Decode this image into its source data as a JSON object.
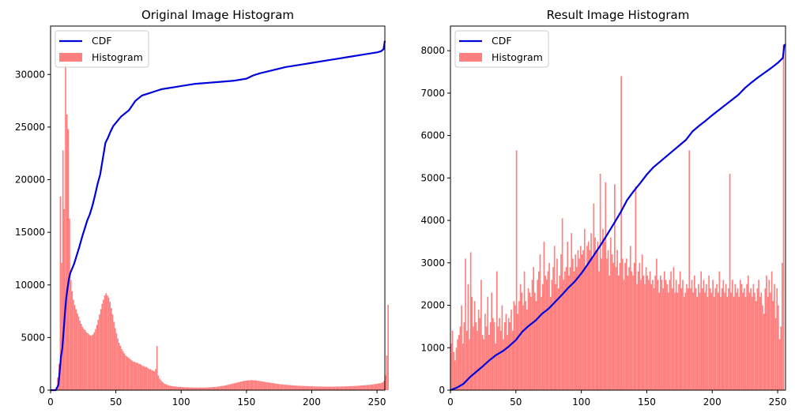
{
  "colors": {
    "cdf": "#0000dd",
    "histogram": "#ff7f7f",
    "axes": "#000000",
    "legend_border": "#cccccc"
  },
  "chart_data": [
    {
      "type": "bar",
      "title": "Original Image Histogram",
      "xlabel": "",
      "ylabel": "",
      "xlim": [
        0,
        256
      ],
      "ylim": [
        0,
        34600
      ],
      "xticks": [
        0,
        50,
        100,
        150,
        200,
        250
      ],
      "yticks": [
        0,
        5000,
        10000,
        15000,
        20000,
        25000,
        30000
      ],
      "grid": false,
      "legend_position": "top-left",
      "legend": [
        "CDF",
        "Histogram"
      ],
      "series": [
        {
          "name": "Histogram",
          "kind": "bar",
          "color": "#ff7f7f",
          "bin_start": 0,
          "bin_width": 1,
          "values": [
            0,
            0,
            0,
            100,
            300,
            1200,
            2500,
            18400,
            12100,
            22800,
            17200,
            31000,
            26200,
            24800,
            16300,
            10500,
            9400,
            8600,
            8100,
            7700,
            7300,
            7000,
            6600,
            6300,
            6000,
            5800,
            5700,
            5500,
            5400,
            5300,
            5200,
            5200,
            5300,
            5500,
            5800,
            6200,
            6700,
            7200,
            7700,
            8200,
            8600,
            9000,
            9200,
            9000,
            8800,
            8400,
            7800,
            7200,
            6500,
            5900,
            5400,
            4900,
            4500,
            4200,
            3900,
            3700,
            3500,
            3300,
            3200,
            3100,
            3000,
            2900,
            2800,
            2700,
            2700,
            2600,
            2600,
            2500,
            2500,
            2400,
            2300,
            2300,
            2200,
            2200,
            2100,
            2000,
            2000,
            1900,
            1850,
            1800,
            2000,
            4200,
            1400,
            1100,
            950,
            800,
            700,
            600,
            550,
            500,
            450,
            420,
            400,
            380,
            360,
            350,
            330,
            320,
            310,
            300,
            290,
            285,
            280,
            275,
            270,
            265,
            260,
            255,
            250,
            250,
            245,
            245,
            240,
            240,
            240,
            240,
            240,
            245,
            250,
            255,
            260,
            265,
            270,
            280,
            290,
            300,
            310,
            320,
            340,
            360,
            380,
            400,
            420,
            440,
            470,
            500,
            530,
            560,
            590,
            620,
            650,
            680,
            710,
            740,
            770,
            800,
            830,
            860,
            880,
            900,
            920,
            930,
            940,
            950,
            950,
            945,
            935,
            920,
            900,
            880,
            860,
            840,
            820,
            800,
            780,
            760,
            740,
            720,
            700,
            680,
            660,
            640,
            620,
            600,
            585,
            570,
            555,
            540,
            530,
            520,
            510,
            500,
            490,
            480,
            470,
            460,
            450,
            440,
            430,
            420,
            415,
            410,
            405,
            400,
            395,
            390,
            385,
            380,
            375,
            370,
            365,
            360,
            355,
            350,
            350,
            345,
            345,
            340,
            340,
            340,
            335,
            335,
            335,
            335,
            335,
            335,
            335,
            340,
            340,
            340,
            345,
            345,
            350,
            350,
            355,
            360,
            365,
            370,
            375,
            380,
            385,
            390,
            395,
            400,
            410,
            420,
            430,
            440,
            450,
            460,
            470,
            480,
            490,
            500,
            510,
            520,
            540,
            560,
            580,
            600,
            620,
            640,
            660,
            700,
            750,
            900,
            1400,
            3300,
            8100
          ]
        },
        {
          "name": "CDF",
          "kind": "line",
          "color": "#0000dd",
          "x": [
            0,
            4,
            6,
            7,
            8,
            9,
            10,
            11,
            12,
            13,
            14,
            15,
            16,
            17,
            18,
            19,
            20,
            22,
            24,
            26,
            28,
            30,
            32,
            34,
            36,
            38,
            40,
            42,
            44,
            46,
            48,
            50,
            52,
            54,
            56,
            58,
            60,
            65,
            70,
            75,
            80,
            85,
            90,
            95,
            100,
            110,
            120,
            130,
            140,
            150,
            155,
            160,
            170,
            180,
            190,
            200,
            210,
            220,
            230,
            240,
            250,
            253,
            254,
            255,
            256
          ],
          "y": [
            0,
            0,
            500,
            1800,
            3200,
            4000,
            5600,
            7300,
            8800,
            9700,
            10500,
            11100,
            11400,
            11700,
            12000,
            12400,
            12800,
            13600,
            14500,
            15300,
            16100,
            16700,
            17500,
            18500,
            19600,
            20500,
            22000,
            23500,
            24000,
            24600,
            25100,
            25400,
            25700,
            26000,
            26200,
            26400,
            26600,
            27500,
            28000,
            28200,
            28400,
            28600,
            28700,
            28800,
            28900,
            29100,
            29200,
            29300,
            29400,
            29600,
            29900,
            30100,
            30400,
            30700,
            30900,
            31100,
            31300,
            31500,
            31700,
            31900,
            32100,
            32200,
            32300,
            32400,
            33200
          ]
        }
      ]
    },
    {
      "type": "bar",
      "title": "Result Image Histogram",
      "xlabel": "",
      "ylabel": "",
      "xlim": [
        0,
        256
      ],
      "ylim": [
        0,
        8580
      ],
      "xticks": [
        0,
        50,
        100,
        150,
        200,
        250
      ],
      "yticks": [
        0,
        1000,
        2000,
        3000,
        4000,
        5000,
        6000,
        7000,
        8000
      ],
      "grid": false,
      "legend_position": "top-left",
      "legend": [
        "CDF",
        "Histogram"
      ],
      "series": [
        {
          "name": "Histogram",
          "kind": "bar",
          "color": "#ff7f7f",
          "bin_start": 0,
          "bin_width": 1,
          "values": [
            1100,
            1400,
            900,
            700,
            1000,
            1200,
            1300,
            1500,
            2000,
            1100,
            1600,
            3100,
            1400,
            2500,
            1200,
            3250,
            2200,
            1500,
            2100,
            1600,
            1400,
            1900,
            1700,
            2600,
            1300,
            1200,
            1800,
            1500,
            2200,
            1300,
            1600,
            2300,
            1700,
            1600,
            1100,
            2800,
            1500,
            1700,
            1400,
            2000,
            1200,
            1600,
            1800,
            1300,
            1700,
            1600,
            1900,
            1400,
            2100,
            2000,
            5650,
            1800,
            2100,
            2500,
            2300,
            2000,
            2800,
            2100,
            1900,
            2400,
            2300,
            2200,
            2600,
            2900,
            2300,
            2100,
            2600,
            2800,
            3200,
            2200,
            2500,
            3500,
            2700,
            2600,
            2800,
            3000,
            2200,
            2600,
            2900,
            3400,
            2500,
            3100,
            2400,
            2700,
            3200,
            4050,
            2600,
            2800,
            2900,
            3500,
            2700,
            2900,
            3700,
            3100,
            2800,
            3200,
            2900,
            3300,
            3100,
            3400,
            3200,
            3300,
            3800,
            2900,
            3400,
            3500,
            3300,
            3700,
            3100,
            4400,
            3600,
            3300,
            3500,
            2800,
            5100,
            3100,
            3800,
            3500,
            4900,
            3100,
            3300,
            2700,
            3600,
            3200,
            3000,
            4850,
            2900,
            3300,
            2700,
            3000,
            7400,
            3100,
            2600,
            3000,
            3100,
            2700,
            2900,
            3400,
            2800,
            2700,
            3000,
            4800,
            2500,
            2800,
            3000,
            2600,
            3200,
            2700,
            2500,
            2900,
            2700,
            2600,
            2800,
            2500,
            2600,
            2400,
            2700,
            3100,
            2600,
            2300,
            2700,
            2600,
            2400,
            2800,
            2600,
            2500,
            2300,
            2600,
            2800,
            2400,
            2900,
            2300,
            2600,
            2300,
            2500,
            2800,
            2400,
            2600,
            2200,
            2300,
            2500,
            2400,
            5650,
            2400,
            2600,
            2300,
            2700,
            2400,
            2200,
            2500,
            2300,
            2800,
            2400,
            2600,
            2300,
            2500,
            2200,
            2700,
            2400,
            2300,
            2600,
            2200,
            2400,
            2500,
            2300,
            2800,
            2200,
            2400,
            2600,
            2300,
            2500,
            2200,
            2400,
            5100,
            2300,
            2600,
            2200,
            2500,
            2300,
            2400,
            2200,
            2600,
            2500,
            2300,
            2400,
            2200,
            2500,
            2700,
            2300,
            2400,
            2200,
            2500,
            2300,
            2100,
            2400,
            2600,
            2200,
            2300,
            2000,
            1800,
            2400,
            2700,
            2200,
            2600,
            2300,
            2800,
            2100,
            2500,
            1700,
            2400,
            2000,
            1200,
            1500,
            3000,
            8150
          ]
        },
        {
          "name": "CDF",
          "kind": "line",
          "color": "#0000dd",
          "x": [
            0,
            5,
            10,
            15,
            20,
            25,
            30,
            35,
            40,
            45,
            50,
            55,
            60,
            65,
            70,
            75,
            80,
            85,
            90,
            95,
            100,
            105,
            110,
            115,
            120,
            125,
            130,
            135,
            140,
            145,
            150,
            155,
            160,
            165,
            170,
            175,
            180,
            182,
            185,
            190,
            195,
            200,
            205,
            210,
            215,
            220,
            225,
            230,
            235,
            240,
            245,
            250,
            254,
            255,
            256
          ],
          "y": [
            0,
            60,
            150,
            310,
            440,
            570,
            710,
            830,
            920,
            1040,
            1180,
            1380,
            1520,
            1640,
            1800,
            1920,
            2080,
            2240,
            2410,
            2560,
            2750,
            2970,
            3200,
            3430,
            3680,
            3930,
            4190,
            4480,
            4690,
            4880,
            5080,
            5250,
            5380,
            5510,
            5640,
            5770,
            5900,
            5980,
            6100,
            6230,
            6350,
            6480,
            6600,
            6720,
            6840,
            6960,
            7120,
            7250,
            7370,
            7480,
            7590,
            7710,
            7830,
            8120,
            8150
          ]
        }
      ]
    }
  ]
}
